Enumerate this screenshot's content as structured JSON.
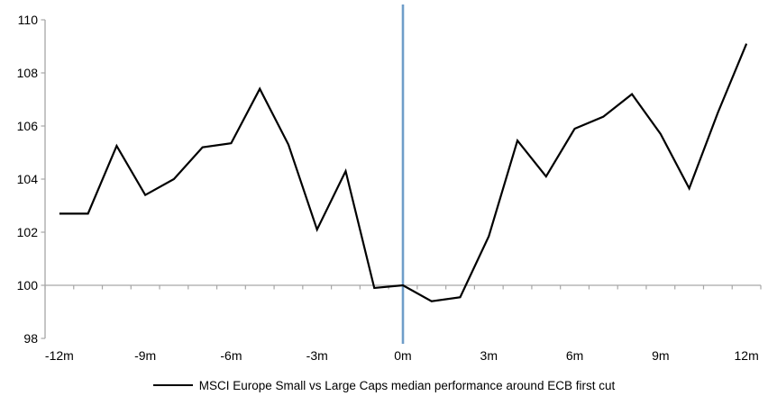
{
  "chart_data": {
    "type": "line",
    "title": "",
    "xlabel": "",
    "ylabel": "",
    "legend_position": "bottom-center",
    "grid": "baseline-only",
    "categories": [
      -12,
      -11,
      -10,
      -9,
      -8,
      -7,
      -6,
      -5,
      -4,
      -3,
      -2,
      -1,
      0,
      1,
      2,
      3,
      4,
      5,
      6,
      7,
      8,
      9,
      10,
      11,
      12
    ],
    "series": [
      {
        "name": "MSCI Europe Small vs Large Caps median performance around ECB first cut",
        "values": [
          102.7,
          102.7,
          105.25,
          103.4,
          104.0,
          105.2,
          105.35,
          107.4,
          105.3,
          102.1,
          104.3,
          99.9,
          100.0,
          99.4,
          99.55,
          101.85,
          105.45,
          104.1,
          105.9,
          106.35,
          107.2,
          105.7,
          103.65,
          106.5,
          109.1
        ]
      }
    ],
    "ylim": [
      98,
      110
    ],
    "y_ticks": [
      98,
      100,
      102,
      104,
      106,
      108,
      110
    ],
    "x_tick_values": [
      -12,
      -9,
      -6,
      -3,
      0,
      3,
      6,
      9,
      12
    ],
    "x_tick_labels": [
      "-12m",
      "-9m",
      "-6m",
      "-3m",
      "0m",
      "3m",
      "6m",
      "9m",
      "12m"
    ],
    "baseline_value": 100,
    "event_line_x": 0
  },
  "colors": {
    "series_line": "#000000",
    "event_line": "#6f9dc9",
    "axis": "#a6a6a6",
    "text": "#000000",
    "background": "#ffffff"
  }
}
